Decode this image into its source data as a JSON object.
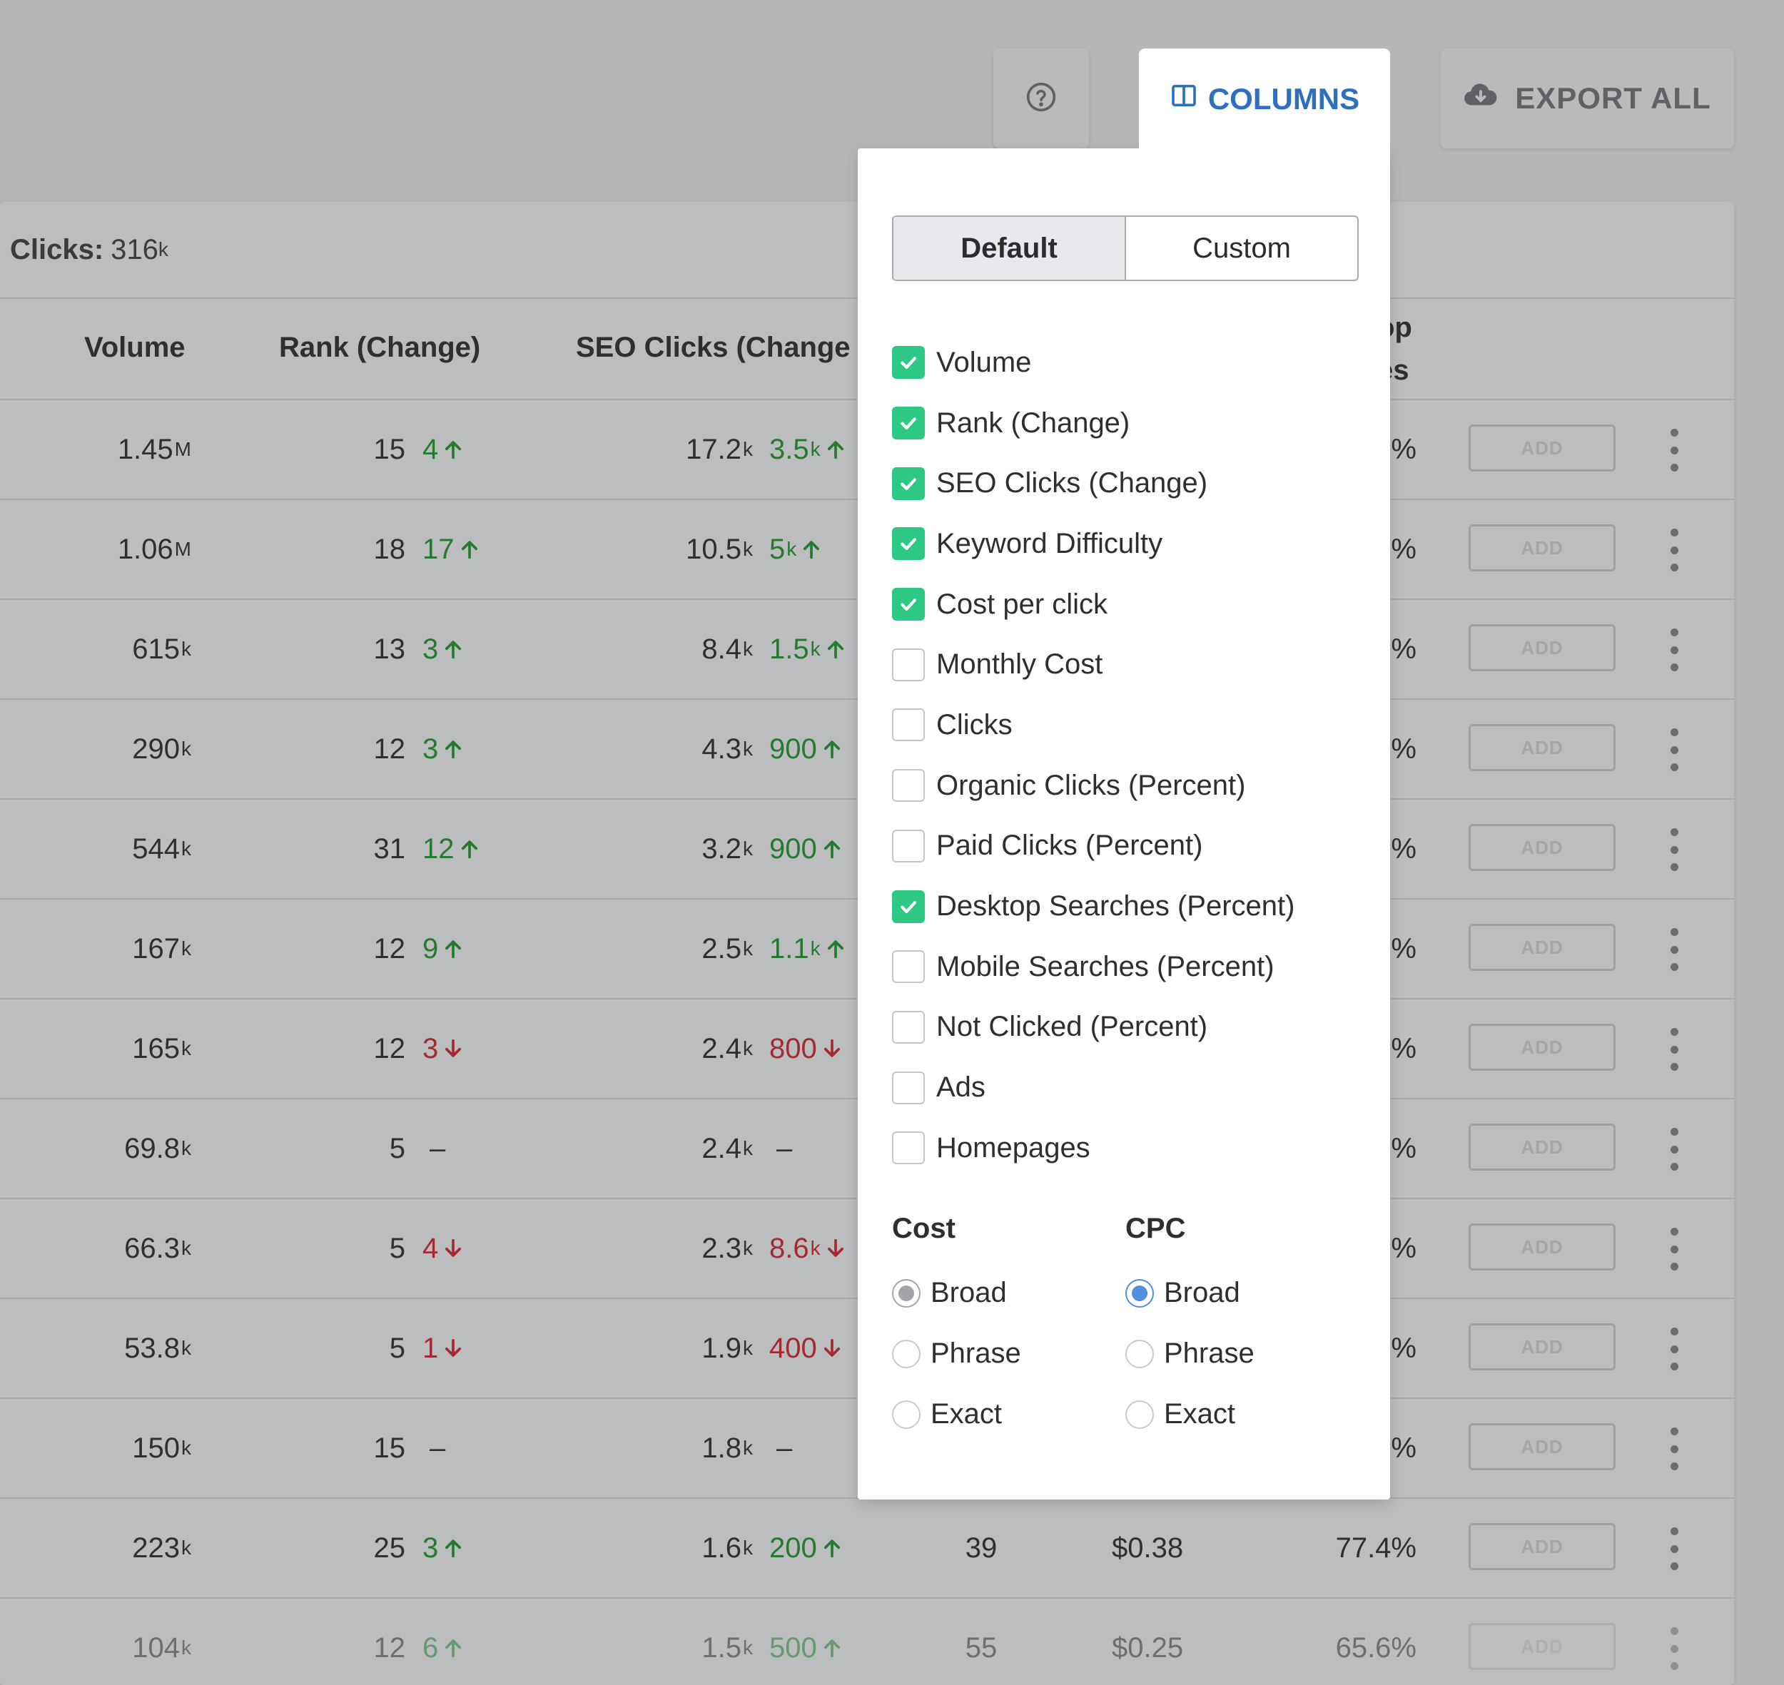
{
  "toolbar": {
    "columns_label": "COLUMNS",
    "export_label": "EXPORT ALL"
  },
  "summary": {
    "prefix": "Clicks:",
    "value": "316",
    "unit": "k"
  },
  "table": {
    "headers": {
      "volume": "Volume",
      "rank": "Rank (Change)",
      "seo_clicks": "SEO Clicks (Change",
      "desktop_top": "op",
      "desktop_bottom": "es"
    },
    "add_label": "ADD",
    "rows": [
      {
        "vol": "1.45",
        "vol_u": "M",
        "rank": "15",
        "rchg": "4",
        "rdir": "up",
        "clk": "17.2",
        "clk_u": "k",
        "cchg": "3.5",
        "cchg_u": "k",
        "cdir": "up",
        "kd": "",
        "cpc": "",
        "pct": "%"
      },
      {
        "vol": "1.06",
        "vol_u": "M",
        "rank": "18",
        "rchg": "17",
        "rdir": "up",
        "clk": "10.5",
        "clk_u": "k",
        "cchg": "5",
        "cchg_u": "k",
        "cdir": "up",
        "kd": "",
        "cpc": "",
        "pct": "%"
      },
      {
        "vol": "615",
        "vol_u": "k",
        "rank": "13",
        "rchg": "3",
        "rdir": "up",
        "clk": "8.4",
        "clk_u": "k",
        "cchg": "1.5",
        "cchg_u": "k",
        "cdir": "up",
        "kd": "",
        "cpc": "",
        "pct": "%"
      },
      {
        "vol": "290",
        "vol_u": "k",
        "rank": "12",
        "rchg": "3",
        "rdir": "up",
        "clk": "4.3",
        "clk_u": "k",
        "cchg": "900",
        "cchg_u": "",
        "cdir": "up",
        "kd": "",
        "cpc": "",
        "pct": "%"
      },
      {
        "vol": "544",
        "vol_u": "k",
        "rank": "31",
        "rchg": "12",
        "rdir": "up",
        "clk": "3.2",
        "clk_u": "k",
        "cchg": "900",
        "cchg_u": "",
        "cdir": "up",
        "kd": "",
        "cpc": "",
        "pct": "%"
      },
      {
        "vol": "167",
        "vol_u": "k",
        "rank": "12",
        "rchg": "9",
        "rdir": "up",
        "clk": "2.5",
        "clk_u": "k",
        "cchg": "1.1",
        "cchg_u": "k",
        "cdir": "up",
        "kd": "",
        "cpc": "",
        "pct": "%"
      },
      {
        "vol": "165",
        "vol_u": "k",
        "rank": "12",
        "rchg": "3",
        "rdir": "down",
        "clk": "2.4",
        "clk_u": "k",
        "cchg": "800",
        "cchg_u": "",
        "cdir": "down",
        "kd": "",
        "cpc": "",
        "pct": "%"
      },
      {
        "vol": "69.8",
        "vol_u": "k",
        "rank": "5",
        "rchg": "–",
        "rdir": "flat",
        "clk": "2.4",
        "clk_u": "k",
        "cchg": "–",
        "cchg_u": "",
        "cdir": "flat",
        "kd": "",
        "cpc": "",
        "pct": "%"
      },
      {
        "vol": "66.3",
        "vol_u": "k",
        "rank": "5",
        "rchg": "4",
        "rdir": "down",
        "clk": "2.3",
        "clk_u": "k",
        "cchg": "8.6",
        "cchg_u": "k",
        "cdir": "down",
        "kd": "",
        "cpc": "",
        "pct": "%"
      },
      {
        "vol": "53.8",
        "vol_u": "k",
        "rank": "5",
        "rchg": "1",
        "rdir": "down",
        "clk": "1.9",
        "clk_u": "k",
        "cchg": "400",
        "cchg_u": "",
        "cdir": "down",
        "kd": "",
        "cpc": "",
        "pct": "%"
      },
      {
        "vol": "150",
        "vol_u": "k",
        "rank": "15",
        "rchg": "–",
        "rdir": "flat",
        "clk": "1.8",
        "clk_u": "k",
        "cchg": "–",
        "cchg_u": "",
        "cdir": "flat",
        "kd": "",
        "cpc": "",
        "pct": "%"
      },
      {
        "vol": "223",
        "vol_u": "k",
        "rank": "25",
        "rchg": "3",
        "rdir": "up",
        "clk": "1.6",
        "clk_u": "k",
        "cchg": "200",
        "cchg_u": "",
        "cdir": "up",
        "kd": "39",
        "cpc": "$0.38",
        "pct": "77.4%"
      },
      {
        "vol": "104",
        "vol_u": "k",
        "rank": "12",
        "rchg": "6",
        "rdir": "up",
        "clk": "1.5",
        "clk_u": "k",
        "cchg": "500",
        "cchg_u": "",
        "cdir": "up",
        "kd": "55",
        "cpc": "$0.25",
        "pct": "65.6%"
      }
    ]
  },
  "popover": {
    "tabs": {
      "default": "Default",
      "custom": "Custom"
    },
    "columns": [
      {
        "label": "Volume",
        "checked": true
      },
      {
        "label": "Rank (Change)",
        "checked": true
      },
      {
        "label": "SEO Clicks (Change)",
        "checked": true
      },
      {
        "label": "Keyword Difficulty",
        "checked": true
      },
      {
        "label": "Cost per click",
        "checked": true
      },
      {
        "label": "Monthly Cost",
        "checked": false
      },
      {
        "label": "Clicks",
        "checked": false
      },
      {
        "label": "Organic Clicks (Percent)",
        "checked": false
      },
      {
        "label": "Paid Clicks (Percent)",
        "checked": false
      },
      {
        "label": "Desktop Searches (Percent)",
        "checked": true
      },
      {
        "label": "Mobile Searches (Percent)",
        "checked": false
      },
      {
        "label": "Not Clicked (Percent)",
        "checked": false
      },
      {
        "label": "Ads",
        "checked": false
      },
      {
        "label": "Homepages",
        "checked": false
      }
    ],
    "cost": {
      "title": "Cost",
      "options": [
        "Broad",
        "Phrase",
        "Exact"
      ],
      "selected": "Broad"
    },
    "cpc": {
      "title": "CPC",
      "options": [
        "Broad",
        "Phrase",
        "Exact"
      ],
      "selected": "Broad"
    }
  },
  "colors": {
    "accent": "#2f6fbf",
    "check_green": "#2ec885",
    "up_green": "#247a2e",
    "down_red": "#a32a32",
    "radio_blue": "#4f8fdd"
  }
}
